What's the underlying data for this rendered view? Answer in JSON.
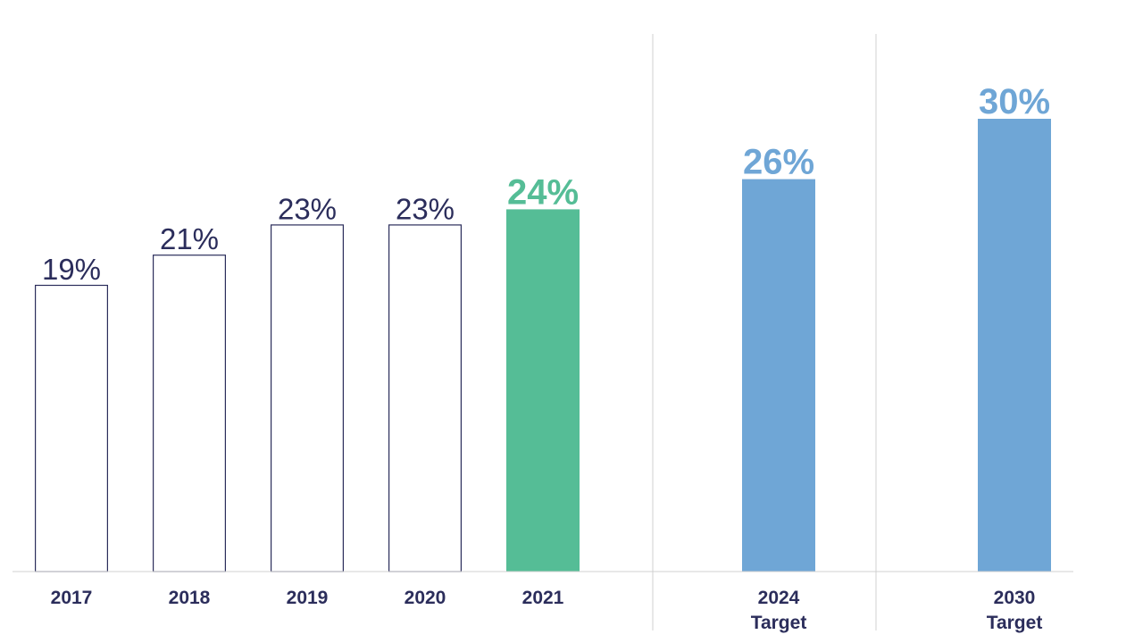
{
  "chart_data": {
    "type": "bar",
    "title": "",
    "xlabel": "",
    "ylabel": "",
    "ylim": [
      0,
      30
    ],
    "grid": false,
    "legend": "none",
    "categories": [
      {
        "lines": [
          "2017"
        ],
        "value_label": "19%",
        "style": "outline"
      },
      {
        "lines": [
          "2018"
        ],
        "value_label": "21%",
        "style": "outline"
      },
      {
        "lines": [
          "2019"
        ],
        "value_label": "23%",
        "style": "outline"
      },
      {
        "lines": [
          "2020"
        ],
        "value_label": "23%",
        "style": "outline"
      },
      {
        "lines": [
          "2021"
        ],
        "value_label": "24%",
        "style": "highlight"
      },
      {
        "lines": [
          "2024",
          "Target"
        ],
        "value_label": "26%",
        "style": "target"
      },
      {
        "lines": [
          "2030",
          "Target"
        ],
        "value_label": "30%",
        "style": "target"
      }
    ],
    "values": [
      19,
      21,
      23,
      23,
      24,
      26,
      30
    ],
    "colors": {
      "outline_stroke": "#2b2d5b",
      "outline_fill": "#ffffff",
      "highlight": "#55bd96",
      "target": "#6fa6d6",
      "text": "#2b2d5b",
      "divider": "#d0d0d0"
    }
  }
}
